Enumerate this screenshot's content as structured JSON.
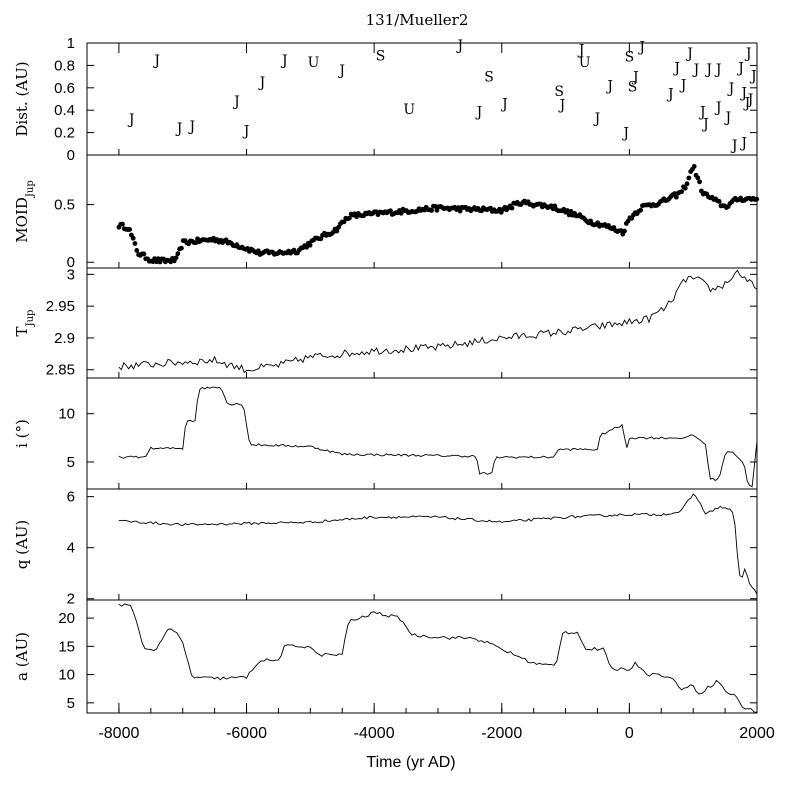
{
  "title": "131/Mueller2",
  "xlabel": "Time (yr AD)",
  "xticks": [
    "-8000",
    "-6000",
    "-4000",
    "-2000",
    "0",
    "2000"
  ],
  "colors": {
    "ink": "#000000",
    "background": "#ffffff"
  },
  "chart_data": [
    {
      "id": "dist",
      "type": "scatter",
      "ylabel": "Dist. (AU)",
      "xlim": [
        -8500,
        2000
      ],
      "ylim": [
        0,
        1
      ],
      "yticks": [
        "0",
        "0.2",
        "0.4",
        "0.6",
        "0.8",
        "1"
      ],
      "marker": "letters",
      "encounters": [
        {
          "x": -7800,
          "y": 0.32,
          "body": "J"
        },
        {
          "x": -7400,
          "y": 0.85,
          "body": "J"
        },
        {
          "x": -7050,
          "y": 0.24,
          "body": "J"
        },
        {
          "x": -6850,
          "y": 0.26,
          "body": "J"
        },
        {
          "x": -6150,
          "y": 0.48,
          "body": "J"
        },
        {
          "x": -6000,
          "y": 0.22,
          "body": "J"
        },
        {
          "x": -5750,
          "y": 0.65,
          "body": "J"
        },
        {
          "x": -5400,
          "y": 0.85,
          "body": "J"
        },
        {
          "x": -4950,
          "y": 0.83,
          "body": "U"
        },
        {
          "x": -4500,
          "y": 0.76,
          "body": "J"
        },
        {
          "x": -3900,
          "y": 0.89,
          "body": "S"
        },
        {
          "x": -3450,
          "y": 0.41,
          "body": "U"
        },
        {
          "x": -2650,
          "y": 0.98,
          "body": "J"
        },
        {
          "x": -2350,
          "y": 0.39,
          "body": "J"
        },
        {
          "x": -2200,
          "y": 0.7,
          "body": "S"
        },
        {
          "x": -1950,
          "y": 0.46,
          "body": "J"
        },
        {
          "x": -1100,
          "y": 0.57,
          "body": "S"
        },
        {
          "x": -1050,
          "y": 0.45,
          "body": "J"
        },
        {
          "x": -750,
          "y": 0.94,
          "body": "J"
        },
        {
          "x": -700,
          "y": 0.83,
          "body": "U"
        },
        {
          "x": -500,
          "y": 0.33,
          "body": "J"
        },
        {
          "x": -300,
          "y": 0.62,
          "body": "J"
        },
        {
          "x": -50,
          "y": 0.2,
          "body": "J"
        },
        {
          "x": 0,
          "y": 0.88,
          "body": "S"
        },
        {
          "x": 50,
          "y": 0.61,
          "body": "S"
        },
        {
          "x": 100,
          "y": 0.7,
          "body": "J"
        },
        {
          "x": 200,
          "y": 0.97,
          "body": "J"
        },
        {
          "x": 650,
          "y": 0.55,
          "body": "J"
        },
        {
          "x": 750,
          "y": 0.78,
          "body": "J"
        },
        {
          "x": 850,
          "y": 0.63,
          "body": "J"
        },
        {
          "x": 950,
          "y": 0.91,
          "body": "J"
        },
        {
          "x": 1050,
          "y": 0.77,
          "body": "J"
        },
        {
          "x": 1150,
          "y": 0.39,
          "body": "J"
        },
        {
          "x": 1200,
          "y": 0.28,
          "body": "J"
        },
        {
          "x": 1250,
          "y": 0.77,
          "body": "J"
        },
        {
          "x": 1400,
          "y": 0.77,
          "body": "J"
        },
        {
          "x": 1400,
          "y": 0.43,
          "body": "J"
        },
        {
          "x": 1550,
          "y": 0.34,
          "body": "J"
        },
        {
          "x": 1600,
          "y": 0.6,
          "body": "J"
        },
        {
          "x": 1650,
          "y": 0.09,
          "body": "J"
        },
        {
          "x": 1750,
          "y": 0.78,
          "body": "J"
        },
        {
          "x": 1800,
          "y": 0.56,
          "body": "J"
        },
        {
          "x": 1850,
          "y": 0.47,
          "body": "J"
        },
        {
          "x": 1870,
          "y": 0.91,
          "body": "J"
        },
        {
          "x": 1900,
          "y": 0.5,
          "body": "J"
        },
        {
          "x": 1950,
          "y": 0.71,
          "body": "J"
        },
        {
          "x": 1800,
          "y": 0.11,
          "body": "J"
        }
      ]
    },
    {
      "id": "moid",
      "type": "scatter",
      "ylabel": "MOID",
      "ylabel_sub": "Jup",
      "xlim": [
        -8500,
        2000
      ],
      "ylim": [
        -0.05,
        0.93
      ],
      "yticks": [
        "0",
        "0.5"
      ],
      "ytick_values": [
        0,
        0.5
      ],
      "knots": [
        [
          -8000,
          0.32
        ],
        [
          -7850,
          0.3
        ],
        [
          -7700,
          0.08
        ],
        [
          -7500,
          0.02
        ],
        [
          -7300,
          0.01
        ],
        [
          -7100,
          0.02
        ],
        [
          -7000,
          0.17
        ],
        [
          -6500,
          0.2
        ],
        [
          -6200,
          0.16
        ],
        [
          -6000,
          0.12
        ],
        [
          -5800,
          0.08
        ],
        [
          -5500,
          0.08
        ],
        [
          -5200,
          0.1
        ],
        [
          -4900,
          0.2
        ],
        [
          -4600,
          0.28
        ],
        [
          -4400,
          0.4
        ],
        [
          -4000,
          0.42
        ],
        [
          -3000,
          0.47
        ],
        [
          -2000,
          0.45
        ],
        [
          -1700,
          0.52
        ],
        [
          -1200,
          0.48
        ],
        [
          -800,
          0.4
        ],
        [
          -600,
          0.35
        ],
        [
          -400,
          0.32
        ],
        [
          -100,
          0.26
        ],
        [
          0,
          0.38
        ],
        [
          200,
          0.48
        ],
        [
          500,
          0.52
        ],
        [
          800,
          0.6
        ],
        [
          900,
          0.68
        ],
        [
          1000,
          0.84
        ],
        [
          1150,
          0.6
        ],
        [
          1300,
          0.55
        ],
        [
          1500,
          0.48
        ],
        [
          1700,
          0.55
        ],
        [
          2000,
          0.55
        ]
      ],
      "noise": 0.02
    },
    {
      "id": "tjup",
      "type": "line",
      "ylabel": "T",
      "ylabel_sub": "Jup",
      "xlim": [
        -8500,
        2000
      ],
      "ylim": [
        2.837,
        3.01
      ],
      "yticks": [
        "2.85",
        "2.9",
        "2.95",
        "3"
      ],
      "ytick_values": [
        2.85,
        2.9,
        2.95,
        3.0
      ],
      "knots": [
        [
          -8000,
          2.855
        ],
        [
          -7000,
          2.862
        ],
        [
          -6500,
          2.865
        ],
        [
          -6000,
          2.85
        ],
        [
          -5500,
          2.857
        ],
        [
          -5000,
          2.87
        ],
        [
          -4000,
          2.88
        ],
        [
          -3000,
          2.885
        ],
        [
          -2000,
          2.9
        ],
        [
          -1000,
          2.91
        ],
        [
          0,
          2.925
        ],
        [
          300,
          2.93
        ],
        [
          600,
          2.95
        ],
        [
          900,
          2.995
        ],
        [
          1100,
          2.99
        ],
        [
          1300,
          2.975
        ],
        [
          1500,
          2.985
        ],
        [
          1700,
          3.005
        ],
        [
          1800,
          2.995
        ],
        [
          2000,
          2.975
        ]
      ],
      "noise": 0.006,
      "steps": 260
    },
    {
      "id": "incl",
      "type": "line",
      "ylabel": "i (°)",
      "xlim": [
        -8500,
        2000
      ],
      "ylim": [
        2.2,
        13.7
      ],
      "yticks": [
        "5",
        "10"
      ],
      "ytick_values": [
        5,
        10
      ],
      "knots": [
        [
          -8000,
          5.5
        ],
        [
          -7600,
          5.5
        ],
        [
          -7500,
          6.4
        ],
        [
          -7000,
          6.4
        ],
        [
          -6950,
          9.3
        ],
        [
          -6800,
          9.3
        ],
        [
          -6750,
          12.6
        ],
        [
          -6400,
          12.8
        ],
        [
          -6300,
          11.0
        ],
        [
          -6050,
          11.0
        ],
        [
          -5950,
          6.8
        ],
        [
          -5000,
          6.6
        ],
        [
          -4500,
          5.8
        ],
        [
          -2400,
          5.6
        ],
        [
          -2350,
          3.8
        ],
        [
          -2150,
          3.8
        ],
        [
          -2100,
          5.5
        ],
        [
          -1200,
          5.5
        ],
        [
          -1100,
          6.3
        ],
        [
          -500,
          6.3
        ],
        [
          -450,
          7.8
        ],
        [
          -300,
          8.3
        ],
        [
          -100,
          8.8
        ],
        [
          -50,
          6.2
        ],
        [
          0,
          7.5
        ],
        [
          900,
          7.5
        ],
        [
          1000,
          7.8
        ],
        [
          1200,
          6.8
        ],
        [
          1260,
          3.2
        ],
        [
          1400,
          3.2
        ],
        [
          1500,
          5.8
        ],
        [
          1600,
          6.2
        ],
        [
          1800,
          4.8
        ],
        [
          1850,
          2.8
        ],
        [
          1930,
          2.5
        ],
        [
          2000,
          7.2
        ]
      ],
      "noise": 0.12,
      "steps": 260
    },
    {
      "id": "q",
      "type": "line",
      "ylabel": "q (AU)",
      "xlim": [
        -8500,
        2000
      ],
      "ylim": [
        1.95,
        6.3
      ],
      "yticks": [
        "2",
        "4",
        "6"
      ],
      "ytick_values": [
        2,
        4,
        6
      ],
      "knots": [
        [
          -8000,
          5.05
        ],
        [
          -7000,
          4.9
        ],
        [
          -6000,
          4.95
        ],
        [
          -5000,
          5.0
        ],
        [
          -4000,
          5.2
        ],
        [
          -3000,
          5.2
        ],
        [
          -2000,
          5.0
        ],
        [
          -1000,
          5.2
        ],
        [
          0,
          5.3
        ],
        [
          500,
          5.3
        ],
        [
          800,
          5.4
        ],
        [
          1000,
          6.1
        ],
        [
          1100,
          5.8
        ],
        [
          1200,
          5.3
        ],
        [
          1400,
          5.6
        ],
        [
          1600,
          5.5
        ],
        [
          1650,
          5.0
        ],
        [
          1700,
          3.5
        ],
        [
          1750,
          2.6
        ],
        [
          1800,
          3.2
        ],
        [
          1900,
          2.5
        ],
        [
          2000,
          2.2
        ]
      ],
      "noise": 0.05,
      "steps": 260
    },
    {
      "id": "a",
      "type": "line",
      "ylabel": "a (AU)",
      "xlim": [
        -8500,
        2000
      ],
      "ylim": [
        3.2,
        23.2
      ],
      "yticks": [
        "5",
        "10",
        "15",
        "20"
      ],
      "ytick_values": [
        5,
        10,
        15,
        20
      ],
      "knots": [
        [
          -8000,
          22.5
        ],
        [
          -7800,
          22.0
        ],
        [
          -7600,
          14.5
        ],
        [
          -7400,
          14.5
        ],
        [
          -7250,
          18.0
        ],
        [
          -7100,
          17.5
        ],
        [
          -7000,
          15.5
        ],
        [
          -6850,
          9.5
        ],
        [
          -6500,
          9.3
        ],
        [
          -6000,
          9.5
        ],
        [
          -5800,
          12.5
        ],
        [
          -5500,
          12.5
        ],
        [
          -5400,
          15.0
        ],
        [
          -5000,
          15.0
        ],
        [
          -4900,
          13.5
        ],
        [
          -4500,
          13.5
        ],
        [
          -4400,
          19.5
        ],
        [
          -4200,
          20.0
        ],
        [
          -4000,
          21.0
        ],
        [
          -3600,
          20.0
        ],
        [
          -3400,
          17.0
        ],
        [
          -2800,
          16.5
        ],
        [
          -2500,
          16.5
        ],
        [
          -2300,
          16.0
        ],
        [
          -2100,
          15.0
        ],
        [
          -1800,
          13.5
        ],
        [
          -1500,
          12.0
        ],
        [
          -1150,
          11.5
        ],
        [
          -1050,
          17.5
        ],
        [
          -800,
          17.5
        ],
        [
          -700,
          14.5
        ],
        [
          -400,
          14.5
        ],
        [
          -300,
          11.0
        ],
        [
          0,
          11.0
        ],
        [
          100,
          12.0
        ],
        [
          300,
          10.0
        ],
        [
          500,
          10.0
        ],
        [
          700,
          9.0
        ],
        [
          800,
          7.5
        ],
        [
          1000,
          8.0
        ],
        [
          1100,
          6.5
        ],
        [
          1200,
          7.5
        ],
        [
          1400,
          9.0
        ],
        [
          1500,
          7.0
        ],
        [
          1700,
          6.0
        ],
        [
          1750,
          4.5
        ],
        [
          1800,
          4.0
        ],
        [
          2000,
          3.5
        ]
      ],
      "noise": 0.3,
      "steps": 220
    }
  ]
}
